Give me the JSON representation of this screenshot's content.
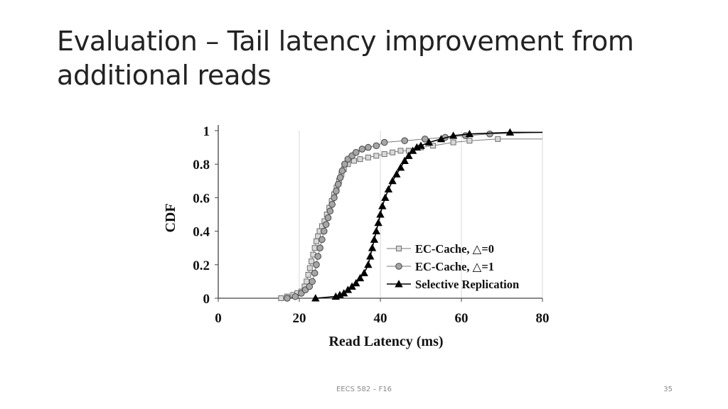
{
  "slide": {
    "title": "Evaluation – Tail latency improvement from additional reads",
    "footer": "EECS 582 – F16",
    "page_number": "35"
  },
  "chart_data": {
    "type": "line",
    "title": "",
    "xlabel": "Read Latency (ms)",
    "ylabel": "CDF",
    "xlim": [
      0,
      80
    ],
    "ylim": [
      0,
      1
    ],
    "x_ticks": [
      "0",
      "20",
      "40",
      "60",
      "80"
    ],
    "y_ticks": [
      "0",
      "0.2",
      "0.4",
      "0.6",
      "0.8",
      "1"
    ],
    "grid": "vertical",
    "legend_position": "bottom-right",
    "series": [
      {
        "name": "EC-Cache, △=0",
        "marker": "square",
        "color": "#9a9a9a",
        "points": [
          [
            15.5,
            0
          ],
          [
            17,
            0.01
          ],
          [
            18.5,
            0.02
          ],
          [
            19.5,
            0.03
          ],
          [
            20.5,
            0.04
          ],
          [
            21.3,
            0.07
          ],
          [
            21.8,
            0.1
          ],
          [
            22.2,
            0.14
          ],
          [
            22.6,
            0.18
          ],
          [
            23,
            0.22
          ],
          [
            23.4,
            0.26
          ],
          [
            23.8,
            0.3
          ],
          [
            24.2,
            0.34
          ],
          [
            24.6,
            0.37
          ],
          [
            25,
            0.4
          ],
          [
            25.6,
            0.43
          ],
          [
            26.2,
            0.46
          ],
          [
            26.8,
            0.5
          ],
          [
            27.4,
            0.54
          ],
          [
            28,
            0.58
          ],
          [
            28.6,
            0.62
          ],
          [
            29.2,
            0.66
          ],
          [
            29.8,
            0.7
          ],
          [
            30.4,
            0.74
          ],
          [
            31,
            0.77
          ],
          [
            32,
            0.8
          ],
          [
            33.5,
            0.82
          ],
          [
            35,
            0.83
          ],
          [
            37,
            0.84
          ],
          [
            39,
            0.85
          ],
          [
            41,
            0.86
          ],
          [
            43,
            0.87
          ],
          [
            45,
            0.88
          ],
          [
            47,
            0.88
          ],
          [
            50,
            0.9
          ],
          [
            53,
            0.91
          ],
          [
            58,
            0.93
          ],
          [
            62,
            0.94
          ],
          [
            69,
            0.95
          ]
        ],
        "curve_end": [
          [
            80,
            0.95
          ]
        ]
      },
      {
        "name": "EC-Cache, △=1",
        "marker": "circle",
        "color": "#808080",
        "points": [
          [
            17,
            0
          ],
          [
            19,
            0.01
          ],
          [
            20.5,
            0.03
          ],
          [
            21.5,
            0.05
          ],
          [
            22.5,
            0.07
          ],
          [
            23.2,
            0.1
          ],
          [
            23.8,
            0.15
          ],
          [
            24.2,
            0.2
          ],
          [
            24.6,
            0.25
          ],
          [
            25.1,
            0.3
          ],
          [
            25.6,
            0.35
          ],
          [
            26.1,
            0.4
          ],
          [
            26.6,
            0.44
          ],
          [
            27.1,
            0.48
          ],
          [
            27.6,
            0.52
          ],
          [
            28.1,
            0.56
          ],
          [
            28.6,
            0.6
          ],
          [
            29.1,
            0.64
          ],
          [
            29.6,
            0.68
          ],
          [
            30.1,
            0.72
          ],
          [
            30.6,
            0.76
          ],
          [
            31.2,
            0.8
          ],
          [
            32,
            0.83
          ],
          [
            33,
            0.85
          ],
          [
            34,
            0.87
          ],
          [
            35.5,
            0.89
          ],
          [
            37,
            0.9
          ],
          [
            39,
            0.91
          ],
          [
            41,
            0.93
          ],
          [
            46,
            0.94
          ],
          [
            51,
            0.95
          ],
          [
            56,
            0.96
          ],
          [
            61,
            0.97
          ],
          [
            67,
            0.98
          ]
        ],
        "curve_end": [
          [
            80,
            0.99
          ]
        ]
      },
      {
        "name": "Selective Replication",
        "marker": "triangle",
        "color": "#000000",
        "points": [
          [
            24,
            0
          ],
          [
            29,
            0.01
          ],
          [
            30,
            0.02
          ],
          [
            31,
            0.03
          ],
          [
            32,
            0.05
          ],
          [
            33,
            0.07
          ],
          [
            34,
            0.09
          ],
          [
            35,
            0.12
          ],
          [
            36,
            0.15
          ],
          [
            37,
            0.2
          ],
          [
            37.5,
            0.25
          ],
          [
            38,
            0.3
          ],
          [
            38.5,
            0.35
          ],
          [
            39,
            0.4
          ],
          [
            39.5,
            0.45
          ],
          [
            40,
            0.5
          ],
          [
            40.5,
            0.55
          ],
          [
            41.2,
            0.6
          ],
          [
            42,
            0.65
          ],
          [
            43,
            0.7
          ],
          [
            44,
            0.74
          ],
          [
            45,
            0.78
          ],
          [
            46,
            0.82
          ],
          [
            47,
            0.85
          ],
          [
            48,
            0.88
          ],
          [
            49,
            0.9
          ],
          [
            50,
            0.91
          ],
          [
            52,
            0.93
          ],
          [
            55,
            0.95
          ],
          [
            58,
            0.97
          ],
          [
            62,
            0.98
          ],
          [
            72,
            0.99
          ]
        ],
        "curve_end": [
          [
            80,
            0.99
          ]
        ]
      }
    ]
  }
}
